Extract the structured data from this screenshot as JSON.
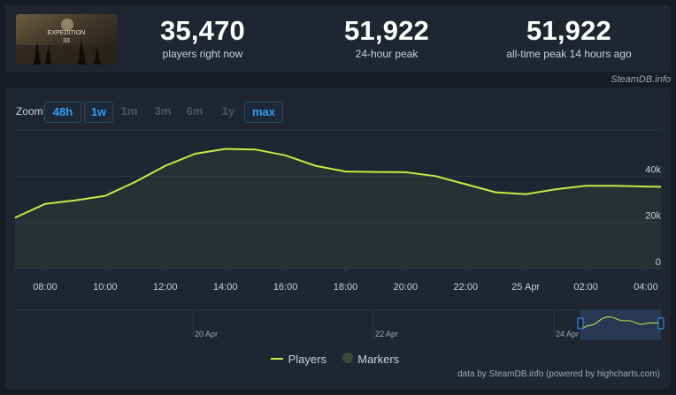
{
  "stats": [
    {
      "value": "35,470",
      "label": "players right now"
    },
    {
      "value": "51,922",
      "label": "24-hour peak"
    },
    {
      "value": "51,922",
      "label": "all-time peak 14 hours ago"
    }
  ],
  "thumbnail_alt": "EXPEDITION 33",
  "credit": "SteamDB.info",
  "zoom": {
    "label": "Zoom",
    "buttons": [
      {
        "label": "48h",
        "active": true
      },
      {
        "label": "1w",
        "active": true
      },
      {
        "label": "1m",
        "active": false
      },
      {
        "label": "3m",
        "active": false
      },
      {
        "label": "6m",
        "active": false
      },
      {
        "label": "1y",
        "active": false
      },
      {
        "label": "max",
        "active": true
      }
    ]
  },
  "chart_data": {
    "type": "line",
    "x_ticks": [
      "08:00",
      "10:00",
      "12:00",
      "14:00",
      "16:00",
      "18:00",
      "20:00",
      "22:00",
      "25 Apr",
      "02:00",
      "04:00"
    ],
    "y_ticks": [
      "0",
      "20k",
      "40k"
    ],
    "ylim": [
      0,
      60000
    ],
    "series": [
      {
        "name": "Players",
        "color": "#c3ed45",
        "x": [
          "07:00",
          "08:00",
          "09:00",
          "10:00",
          "11:00",
          "12:00",
          "13:00",
          "14:00",
          "15:00",
          "16:00",
          "17:00",
          "18:00",
          "19:00",
          "20:00",
          "21:00",
          "22:00",
          "23:00",
          "00:00",
          "01:00",
          "02:00",
          "03:00",
          "04:00",
          "04:30"
        ],
        "values": [
          22000,
          28000,
          29500,
          31500,
          37500,
          44500,
          49700,
          51800,
          51500,
          49000,
          44500,
          42000,
          41800,
          41700,
          40000,
          36500,
          33000,
          32200,
          34300,
          35800,
          35800,
          35500,
          35400
        ]
      }
    ],
    "navigator_labels": [
      "20 Apr",
      "22 Apr",
      "24 Apr"
    ],
    "legend": [
      {
        "name": "Players",
        "color": "#c3ed45"
      },
      {
        "name": "Markers",
        "color": "#3b4a36"
      }
    ]
  },
  "footer": "data by SteamDB.info (powered by highcharts.com)"
}
